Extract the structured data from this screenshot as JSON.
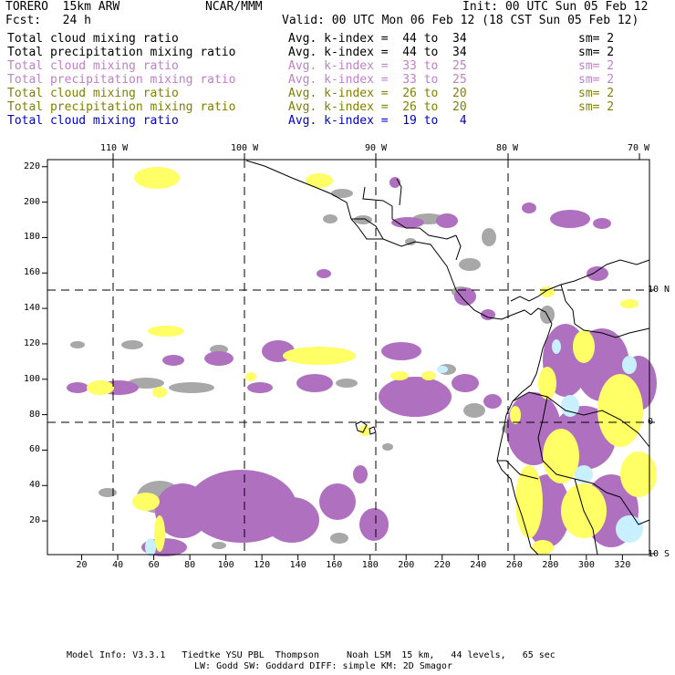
{
  "header": {
    "model": "TORERO  15km ARW",
    "org": "NCAR/MMM",
    "init": "Init: 00 UTC Sun 05 Feb 12",
    "fcst": "Fcst:   24 h",
    "valid": "Valid: 00 UTC Mon 06 Feb 12 (18 CST Sun 05 Feb 12)"
  },
  "legend": [
    {
      "field": "Total cloud mixing ratio",
      "stat": "Avg. k-index =  44 to  34",
      "sm": "sm= 2",
      "color": "#000000"
    },
    {
      "field": "Total precipitation mixing ratio",
      "stat": "Avg. k-index =  44 to  34",
      "sm": "sm= 2",
      "color": "#000000"
    },
    {
      "field": "Total cloud mixing ratio",
      "stat": "Avg. k-index =  33 to  25",
      "sm": "sm= 2",
      "color": "#c080c8"
    },
    {
      "field": "Total precipitation mixing ratio",
      "stat": "Avg. k-index =  33 to  25",
      "sm": "sm= 2",
      "color": "#c080c8"
    },
    {
      "field": "Total cloud mixing ratio",
      "stat": "Avg. k-index =  26 to  20",
      "sm": "sm= 2",
      "color": "#808000"
    },
    {
      "field": "Total precipitation mixing ratio",
      "stat": "Avg. k-index =  26 to  20",
      "sm": "sm= 2",
      "color": "#808000"
    },
    {
      "field": "Total cloud mixing ratio",
      "stat": "Avg. k-index =  19 to   4",
      "sm": "",
      "color": "#0000cc"
    }
  ],
  "axes": {
    "lon_labels": [
      "110 W",
      "100 W",
      "90 W",
      "80 W",
      "70 W"
    ],
    "lat_labels": [
      "10 N",
      "0",
      "10 S"
    ],
    "x_ticks": [
      "20",
      "40",
      "60",
      "80",
      "100",
      "120",
      "140",
      "160",
      "180",
      "200",
      "220",
      "240",
      "260",
      "280",
      "300",
      "320"
    ],
    "y_ticks": [
      "220",
      "200",
      "180",
      "160",
      "140",
      "120",
      "100",
      "80",
      "60",
      "40",
      "20"
    ],
    "x_range": [
      1,
      335
    ],
    "y_range": [
      1,
      224
    ],
    "graticule_lon_x": [
      40,
      112,
      184,
      260
    ],
    "graticule_lat_y": [
      150,
      76
    ]
  },
  "colors": {
    "gray": "#a0a0a0",
    "darkgray": "#707070",
    "purple": "#b070c0",
    "yellow": "#ffff55",
    "cyan": "#c8f0ff"
  },
  "footer": {
    "line1": "Model Info: V3.3.1   Tiedtke YSU PBL  Thompson     Noah LSM  15 km,   44 levels,   65 sec",
    "line2": "LW: Godd SW: Goddard DIFF: simple KM: 2D Smagor"
  }
}
